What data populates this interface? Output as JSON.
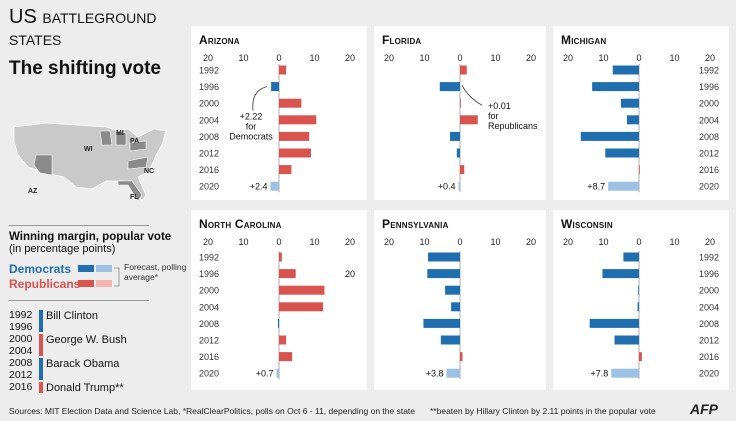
{
  "title_line1_prefix": "US",
  "title_line1_sc": "battleground",
  "title_line2": "states",
  "subtitle": "The shifting vote",
  "map": {
    "state_labels": [
      "MI",
      "WI",
      "PA",
      "NC",
      "AZ",
      "FL"
    ]
  },
  "legend": {
    "heading": "Winning margin, popular vote",
    "subheading": "(in percentage points)",
    "democrats": "Democrats",
    "republicans": "Republicans",
    "forecast_note": "Forecast, polling average*"
  },
  "presidents": [
    {
      "years": "1992",
      "name": "Bill Clinton",
      "party": "dem"
    },
    {
      "years": "1996",
      "name": "",
      "party": "dem"
    },
    {
      "years": "2000",
      "name": "George W. Bush",
      "party": "rep"
    },
    {
      "years": "2004",
      "name": "",
      "party": "rep"
    },
    {
      "years": "2008",
      "name": "Barack Obama",
      "party": "dem"
    },
    {
      "years": "2012",
      "name": "",
      "party": "dem"
    },
    {
      "years": "2016",
      "name": "Donald Trump**",
      "party": "rep"
    }
  ],
  "footer": {
    "sources": "Sources: MIT Election Data and Science Lab, *RealClearPolitics, polls on Oct 6 - 11, depending on the state",
    "note": "**beaten by Hillary Clinton by 2.11 points in the popular vote",
    "brand": "AFP"
  },
  "colors": {
    "dem": "#1f6fb0",
    "rep": "#d9534f",
    "dem_light": "#9cc1e3",
    "rep_light": "#f2b5ae"
  },
  "chart_data": [
    {
      "type": "bar",
      "title": "Arizona",
      "categories": [
        "1992",
        "1996",
        "2000",
        "2004",
        "2008",
        "2012",
        "2016",
        "2020"
      ],
      "values": [
        2,
        -2.22,
        6.3,
        10.5,
        8.5,
        9,
        3.5,
        -2.4
      ],
      "forecast_label": "+2.4",
      "tick_labels": [
        "20",
        "10",
        "0",
        "10",
        "20"
      ],
      "xlim": [
        -20,
        20
      ],
      "annotation": "+2.22\nfor\nDemocrats"
    },
    {
      "type": "bar",
      "title": "Florida",
      "categories": [
        "1992",
        "1996",
        "2000",
        "2004",
        "2008",
        "2012",
        "2016",
        "2020"
      ],
      "values": [
        1.9,
        -5.7,
        0.01,
        5,
        -2.8,
        -0.9,
        1.2,
        -0.4
      ],
      "forecast_label": "+0.4",
      "tick_labels": [
        "20",
        "10",
        "0",
        "10",
        "20"
      ],
      "xlim": [
        -20,
        20
      ],
      "annotation": "+0.01\nfor\nRepublicans"
    },
    {
      "type": "bar",
      "title": "Michigan",
      "categories": [
        "1992",
        "1996",
        "2000",
        "2004",
        "2008",
        "2012",
        "2016",
        "2020"
      ],
      "values": [
        -7.4,
        -13.2,
        -5.1,
        -3.4,
        -16.4,
        -9.5,
        0.2,
        -8.7
      ],
      "forecast_label": "+8.7",
      "tick_labels": [
        "20",
        "10",
        "0",
        "10",
        "20"
      ],
      "xlim": [
        -20,
        20
      ],
      "annotation": ""
    },
    {
      "type": "bar",
      "title": "North Carolina",
      "categories": [
        "1992",
        "1996",
        "2000",
        "2004",
        "2008",
        "2012",
        "2016",
        "2020"
      ],
      "values": [
        0.8,
        4.7,
        12.8,
        12.4,
        -0.3,
        2,
        3.7,
        -0.7
      ],
      "forecast_label": "+0.7",
      "tick_labels": [
        "20",
        "10",
        "0",
        "10",
        "20"
      ],
      "xlim": [
        -20,
        20
      ],
      "annotation": "20"
    },
    {
      "type": "bar",
      "title": "Pennsylvania",
      "categories": [
        "1992",
        "1996",
        "2000",
        "2004",
        "2008",
        "2012",
        "2016",
        "2020"
      ],
      "values": [
        -9,
        -9.2,
        -4.2,
        -2.5,
        -10.3,
        -5.4,
        0.7,
        -3.8
      ],
      "forecast_label": "+3.8",
      "tick_labels": [
        "20",
        "10",
        "0",
        "10",
        "20"
      ],
      "xlim": [
        -20,
        20
      ],
      "annotation": ""
    },
    {
      "type": "bar",
      "title": "Wisconsin",
      "categories": [
        "1992",
        "1996",
        "2000",
        "2004",
        "2008",
        "2012",
        "2016",
        "2020"
      ],
      "values": [
        -4.4,
        -10.3,
        -0.2,
        -0.4,
        -13.9,
        -6.9,
        0.8,
        -7.8
      ],
      "forecast_label": "+7.8",
      "tick_labels": [
        "20",
        "10",
        "0",
        "10",
        "20"
      ],
      "xlim": [
        -20,
        20
      ],
      "annotation": ""
    }
  ]
}
